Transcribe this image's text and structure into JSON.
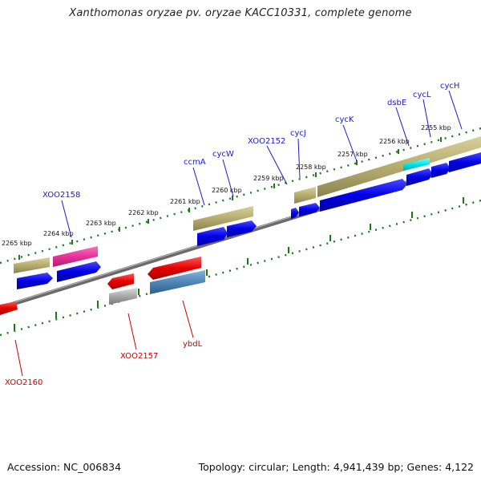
{
  "title": "Xanthomonas oryzae pv. oryzae KACC10331, complete genome",
  "footer": {
    "accession": "Accession: NC_006834",
    "topology": "Topology: circular; Length: 4,941,439 bp; Genes: 4,122"
  },
  "tick_labels": [
    "2265 kbp",
    "2264 kbp",
    "2263 kbp",
    "2262 kbp",
    "2261 kbp",
    "2260 kbp",
    "2259 kbp",
    "2258 kbp",
    "2257 kbp",
    "2256 kbp",
    "2255 kbp"
  ],
  "genes_forward": [
    "XOO2158",
    "ccmA",
    "cycW",
    "XOO2152",
    "cycJ",
    "cycK",
    "dsbE",
    "cycL",
    "cycH"
  ],
  "genes_reverse": [
    "XOO2160",
    "XOO2157",
    "ybdL"
  ],
  "colors": {
    "forward_label": "#1a1acc",
    "reverse_label": "#cc0000",
    "backbone": "#808080",
    "tick": "#1a7a1a",
    "blue": "#0000e6",
    "khaki": "#b5ad6e",
    "magenta": "#e6339a",
    "red": "#e60000",
    "steelblue": "#4f86b8",
    "grey": "#9a9a9a",
    "cyan": "#00e6e6"
  }
}
